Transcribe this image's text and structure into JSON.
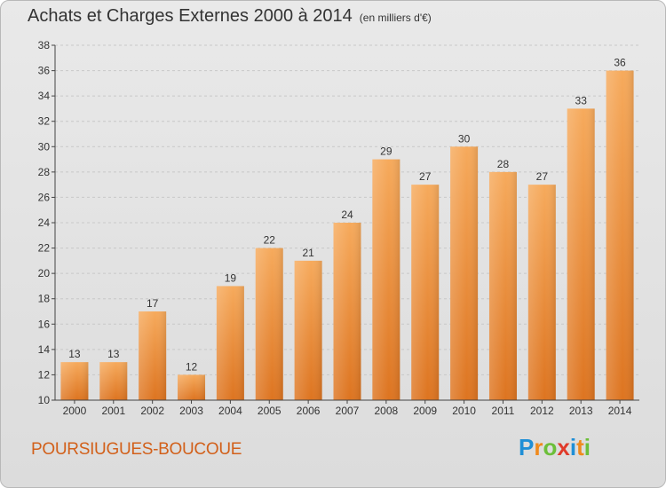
{
  "title": "Achats et Charges Externes 2000 à 2014",
  "unit_note": "(en milliers d'€)",
  "commune": "POURSIUGUES-BOUCOUE",
  "logo": {
    "text": "Proxiti",
    "letters": [
      {
        "ch": "P",
        "color": "#1f8fd6"
      },
      {
        "ch": "r",
        "color": "#f08a1c"
      },
      {
        "ch": "o",
        "color": "#6cbf3a"
      },
      {
        "ch": "x",
        "color": "#e03a2a"
      },
      {
        "ch": "i",
        "color": "#1f8fd6"
      },
      {
        "ch": "t",
        "color": "#f08a1c"
      },
      {
        "ch": "i",
        "color": "#6cbf3a"
      }
    ]
  },
  "colors": {
    "bar_light": "#f6aa5c",
    "bar_dark": "#dd7420",
    "axis": "#444444",
    "grid": "#c8c8c8",
    "commune": "#d2601a"
  },
  "chart_data": {
    "type": "bar",
    "title": "Achats et Charges Externes 2000 à 2014",
    "subtitle": "(en milliers d'€)",
    "xlabel": "",
    "ylabel": "",
    "categories": [
      "2000",
      "2001",
      "2002",
      "2003",
      "2004",
      "2005",
      "2006",
      "2007",
      "2008",
      "2009",
      "2010",
      "2011",
      "2012",
      "2013",
      "2014"
    ],
    "values": [
      13,
      13,
      17,
      12,
      19,
      22,
      21,
      24,
      29,
      27,
      30,
      28,
      27,
      33,
      36
    ],
    "ylim": [
      10,
      38
    ],
    "yticks": [
      10,
      12,
      14,
      16,
      18,
      20,
      22,
      24,
      26,
      28,
      30,
      32,
      34,
      36,
      38
    ],
    "grid": true,
    "data_labels": true
  }
}
